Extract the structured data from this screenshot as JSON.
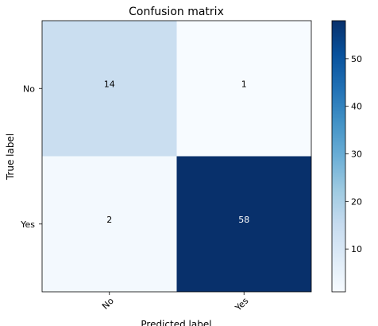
{
  "chart_data": {
    "type": "heatmap",
    "title": "Confusion matrix",
    "xlabel": "Predicted label",
    "ylabel": "True label",
    "x_categories": [
      "No",
      "Yes"
    ],
    "y_categories": [
      "No",
      "Yes"
    ],
    "values": [
      [
        14,
        1
      ],
      [
        2,
        58
      ]
    ],
    "colormap": "Blues",
    "colorbar": {
      "min": 1,
      "max": 58,
      "ticks": [
        10,
        20,
        30,
        40,
        50
      ]
    },
    "grid": false
  }
}
